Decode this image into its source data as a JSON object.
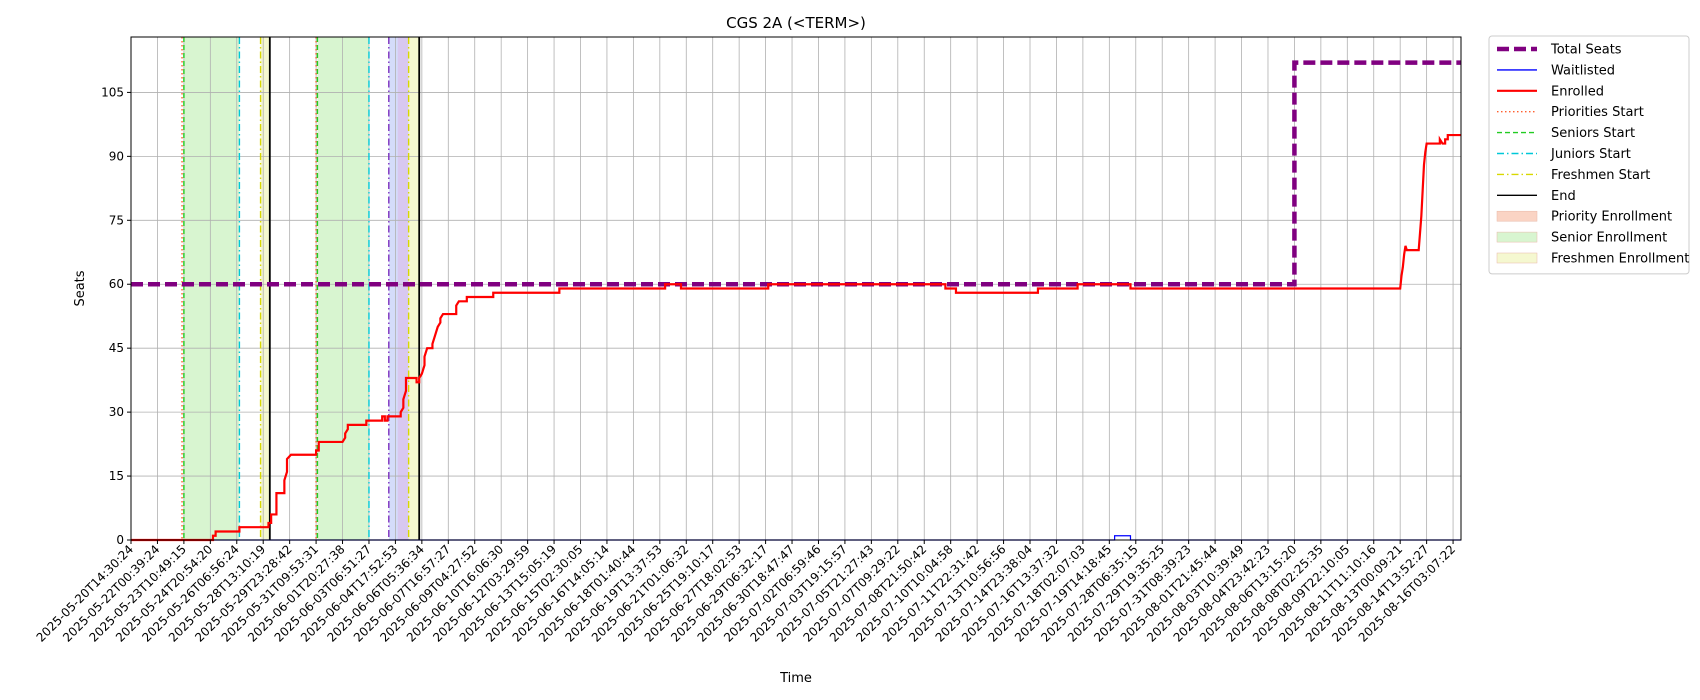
{
  "chart_data": {
    "type": "line",
    "title": "CGS 2A (<TERM>)",
    "xlabel": "Time",
    "ylabel": "Seats",
    "ylim": [
      0,
      118
    ],
    "yticks": [
      0,
      15,
      30,
      45,
      60,
      75,
      90,
      105
    ],
    "grid": true,
    "legend_position": "outside-right-top",
    "x_tick_labels": [
      "2025-05-20T14:30:24",
      "2025-05-22T00:39:24",
      "2025-05-23T10:49:15",
      "2025-05-24T20:54:20",
      "2025-05-26T06:56:24",
      "2025-05-28T13:10:19",
      "2025-05-29T23:28:42",
      "2025-05-31T09:53:31",
      "2025-06-01T20:27:38",
      "2025-06-03T06:51:27",
      "2025-06-04T17:52:53",
      "2025-06-06T05:36:34",
      "2025-06-07T16:57:27",
      "2025-06-09T04:27:52",
      "2025-06-10T16:06:30",
      "2025-06-12T03:29:59",
      "2025-06-13T15:05:19",
      "2025-06-15T02:30:05",
      "2025-06-16T14:05:14",
      "2025-06-18T01:40:44",
      "2025-06-19T13:37:53",
      "2025-06-21T01:06:32",
      "2025-06-25T19:10:17",
      "2025-06-27T18:02:53",
      "2025-06-29T06:32:17",
      "2025-06-30T18:47:47",
      "2025-07-02T06:59:46",
      "2025-07-03T19:15:57",
      "2025-07-05T21:27:43",
      "2025-07-07T09:29:22",
      "2025-07-08T21:50:42",
      "2025-07-10T10:04:58",
      "2025-07-11T22:31:42",
      "2025-07-13T10:56:56",
      "2025-07-14T23:38:04",
      "2025-07-16T13:37:32",
      "2025-07-18T02:07:03",
      "2025-07-19T14:18:45",
      "2025-07-28T06:35:15",
      "2025-07-29T19:35:25",
      "2025-07-31T08:39:23",
      "2025-08-01T21:45:44",
      "2025-08-03T10:39:49",
      "2025-08-04T23:42:23",
      "2025-08-06T13:15:20",
      "2025-08-08T02:25:35",
      "2025-08-09T22:10:05",
      "2025-08-11T11:10:16",
      "2025-08-13T00:09:21",
      "2025-08-14T13:52:27",
      "2025-08-16T03:07:22"
    ],
    "series": [
      {
        "name": "Total Seats",
        "style": "dashed",
        "color": "#800080",
        "points": [
          [
            0,
            60
          ],
          [
            44,
            60
          ],
          [
            44,
            112
          ],
          [
            50.3,
            112
          ]
        ]
      },
      {
        "name": "Waitlisted",
        "style": "solid",
        "color": "#0000ff",
        "points": [
          [
            0,
            0
          ],
          [
            37.2,
            0
          ],
          [
            37.2,
            1
          ],
          [
            37.8,
            1
          ],
          [
            37.8,
            0
          ],
          [
            50.3,
            0
          ]
        ]
      },
      {
        "name": "Enrolled",
        "style": "solid",
        "color": "#ff0000",
        "points": [
          [
            0,
            0
          ],
          [
            1.2,
            0
          ],
          [
            1.2,
            0
          ],
          [
            2.2,
            0
          ],
          [
            2.2,
            0
          ],
          [
            2.9,
            0
          ],
          [
            2.9,
            0
          ],
          [
            3.1,
            0
          ],
          [
            3.1,
            1
          ],
          [
            3.2,
            1
          ],
          [
            3.2,
            2
          ],
          [
            4.1,
            2
          ],
          [
            4.1,
            3
          ],
          [
            4.4,
            3
          ],
          [
            5.0,
            3
          ],
          [
            5.2,
            3
          ],
          [
            5.2,
            4
          ],
          [
            5.3,
            4
          ],
          [
            5.3,
            6
          ],
          [
            5.5,
            6
          ],
          [
            5.5,
            11
          ],
          [
            5.8,
            11
          ],
          [
            5.8,
            14
          ],
          [
            5.9,
            16
          ],
          [
            5.9,
            19
          ],
          [
            6.05,
            20
          ],
          [
            7.0,
            20
          ],
          [
            7.0,
            21
          ],
          [
            7.1,
            21
          ],
          [
            7.1,
            23
          ],
          [
            8.0,
            23
          ],
          [
            8.1,
            24
          ],
          [
            8.1,
            25
          ],
          [
            8.2,
            26
          ],
          [
            8.2,
            27
          ],
          [
            8.9,
            27
          ],
          [
            8.9,
            28
          ],
          [
            9.5,
            28
          ],
          [
            9.5,
            29
          ],
          [
            9.6,
            29
          ],
          [
            9.6,
            28
          ],
          [
            9.7,
            28
          ],
          [
            9.7,
            29
          ],
          [
            10.2,
            29
          ],
          [
            10.2,
            30
          ],
          [
            10.3,
            31
          ],
          [
            10.3,
            33
          ],
          [
            10.4,
            35
          ],
          [
            10.4,
            38
          ],
          [
            10.8,
            38
          ],
          [
            10.8,
            37
          ],
          [
            10.9,
            37
          ],
          [
            10.9,
            38
          ],
          [
            11.0,
            39
          ],
          [
            11.1,
            41
          ],
          [
            11.1,
            43
          ],
          [
            11.2,
            45
          ],
          [
            11.4,
            45
          ],
          [
            11.4,
            46
          ],
          [
            11.5,
            48
          ],
          [
            11.6,
            50
          ],
          [
            11.7,
            51
          ],
          [
            11.7,
            52
          ],
          [
            11.8,
            53
          ],
          [
            12.3,
            53
          ],
          [
            12.3,
            55
          ],
          [
            12.4,
            56
          ],
          [
            12.7,
            56
          ],
          [
            12.7,
            57
          ],
          [
            12.9,
            57
          ],
          [
            13.7,
            57
          ],
          [
            13.7,
            58
          ],
          [
            16.0,
            58
          ],
          [
            16.0,
            58
          ],
          [
            16.2,
            58
          ],
          [
            16.2,
            59
          ],
          [
            20.2,
            59
          ],
          [
            20.2,
            60
          ],
          [
            20.8,
            60
          ],
          [
            20.8,
            59
          ],
          [
            24.1,
            59
          ],
          [
            24.1,
            60
          ],
          [
            30.8,
            60
          ],
          [
            30.8,
            59
          ],
          [
            31.2,
            59
          ],
          [
            31.2,
            58
          ],
          [
            34.3,
            58
          ],
          [
            34.3,
            59
          ],
          [
            35.8,
            59
          ],
          [
            35.8,
            60
          ],
          [
            37.8,
            60
          ],
          [
            37.8,
            59
          ],
          [
            48.0,
            59
          ],
          [
            48.05,
            62
          ],
          [
            48.1,
            64
          ],
          [
            48.15,
            67
          ],
          [
            48.2,
            69
          ],
          [
            48.25,
            68
          ],
          [
            48.7,
            68
          ],
          [
            48.75,
            72
          ],
          [
            48.8,
            76
          ],
          [
            48.85,
            82
          ],
          [
            48.9,
            88
          ],
          [
            48.95,
            91
          ],
          [
            49.0,
            93
          ],
          [
            49.5,
            93
          ],
          [
            49.5,
            94
          ],
          [
            49.6,
            93
          ],
          [
            49.7,
            93
          ],
          [
            49.7,
            94
          ],
          [
            49.8,
            94
          ],
          [
            49.8,
            95
          ],
          [
            50.3,
            95
          ]
        ]
      },
      {
        "name": "Priorities Start",
        "style": "dotted",
        "color": "#ff6030",
        "marker": true
      },
      {
        "name": "Seniors Start",
        "style": "dashed",
        "color": "#22cc22",
        "marker": true
      },
      {
        "name": "Juniors Start",
        "style": "dashdot",
        "color": "#00c8d8",
        "marker": true
      },
      {
        "name": "Freshmen Start",
        "style": "dashdot",
        "color": "#d8d800",
        "marker": true
      },
      {
        "name": "End",
        "style": "solid",
        "color": "#000000",
        "marker": true
      },
      {
        "name": "Priority Enrollment",
        "style": "band",
        "color": "#fad4c4"
      },
      {
        "name": "Senior Enrollment",
        "style": "band",
        "color": "#d8f5d0"
      },
      {
        "name": "Freshmen Enrollment",
        "style": "band",
        "color": "#f5f8d0"
      }
    ],
    "vertical_markers": [
      {
        "series": "Priorities Start",
        "x": 1.93
      },
      {
        "series": "Seniors Start",
        "x": 2.0
      },
      {
        "series": "Juniors Start",
        "x": 4.1
      },
      {
        "series": "Freshmen Start",
        "x": 4.9
      },
      {
        "series": "End",
        "x": 5.25
      },
      {
        "series": "Priorities Start",
        "x": 7.0
      },
      {
        "series": "Seniors Start",
        "x": 7.05
      },
      {
        "series": "Juniors Start",
        "x": 9.0
      },
      {
        "series": "Juniors Start",
        "x": 9.75,
        "color": "#7b2fbf"
      },
      {
        "series": "Freshmen Start",
        "x": 10.5
      },
      {
        "series": "End",
        "x": 10.9
      }
    ],
    "shaded_regions": [
      {
        "series": "Senior Enrollment",
        "x0": 2.0,
        "x1": 4.1
      },
      {
        "series": "Freshmen Enrollment",
        "x0": 4.9,
        "x1": 5.25
      },
      {
        "series": "Senior Enrollment",
        "x0": 7.05,
        "x1": 9.0
      },
      {
        "series": "Juniors band",
        "x0": 9.75,
        "x1": 10.5,
        "color": "#d4dcfa",
        "overlay": "#d8c8f0"
      },
      {
        "series": "Freshmen Enrollment",
        "x0": 10.5,
        "x1": 10.9
      }
    ]
  }
}
